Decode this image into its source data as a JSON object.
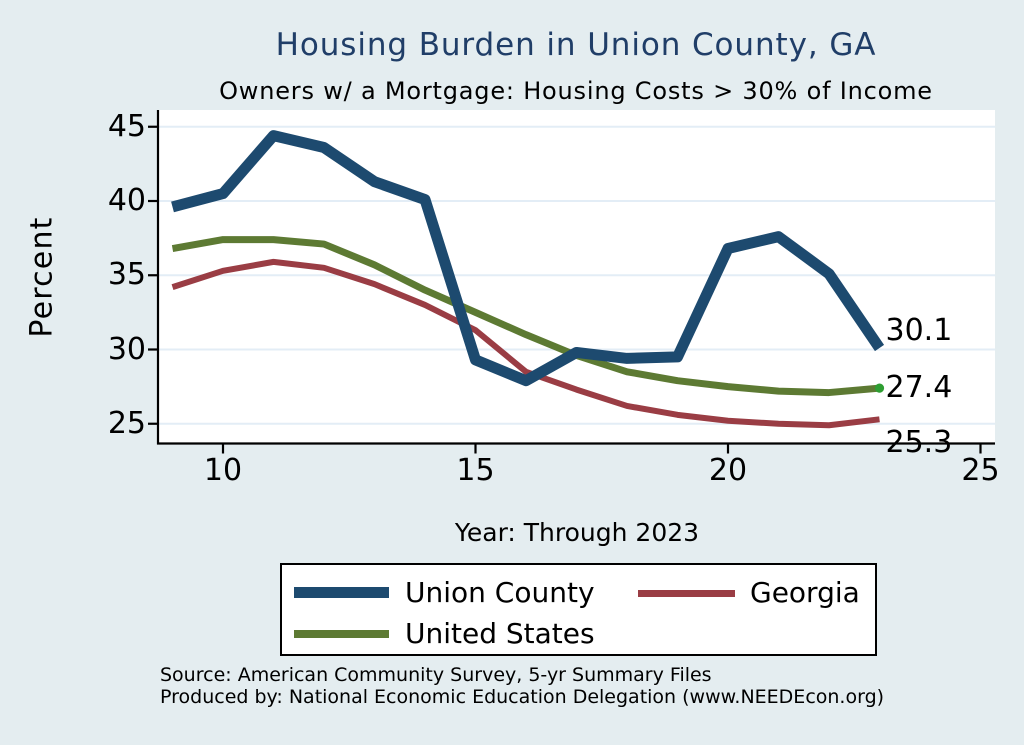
{
  "title": "Housing Burden in Union County, GA",
  "subtitle": "Owners w/ a Mortgage: Housing Costs > 30% of Income",
  "y_axis_label": "Percent",
  "x_axis_label": "Year: Through 2023",
  "source_line1": "Source: American Community Survey, 5-yr Summary Files",
  "source_line2": "Produced by: National Economic Education Delegation (www.NEEDEcon.org)",
  "colors": {
    "background": "#e4edf0",
    "plot_background": "#ffffff",
    "grid": "#e3edf6",
    "axis": "#000000",
    "title_text": "#203e68",
    "end_marker_green": "#2e9e32"
  },
  "chart_data": {
    "type": "line",
    "x": [
      9,
      10,
      11,
      12,
      13,
      14,
      15,
      16,
      17,
      18,
      19,
      20,
      21,
      22,
      23
    ],
    "x_ticks": [
      10,
      15,
      20,
      25
    ],
    "y_ticks": [
      25,
      30,
      35,
      40,
      45
    ],
    "xlim": [
      8.7,
      25.3
    ],
    "ylim": [
      23.7,
      46.1
    ],
    "grid": true,
    "legend_position": "below",
    "series": [
      {
        "name": "Union County",
        "color": "#1d4a6f",
        "line_width": 11,
        "end_label": "30.1",
        "end_marker": false,
        "values": [
          39.6,
          40.5,
          44.4,
          43.6,
          41.3,
          40.1,
          29.3,
          27.9,
          29.8,
          29.4,
          29.5,
          36.8,
          37.6,
          35.1,
          30.1
        ]
      },
      {
        "name": "Georgia",
        "color": "#9a3d44",
        "line_width": 6,
        "end_label": "25.3",
        "end_marker": false,
        "values": [
          34.2,
          35.3,
          35.9,
          35.5,
          34.4,
          33.0,
          31.3,
          28.5,
          27.3,
          26.2,
          25.6,
          25.2,
          25.0,
          24.9,
          25.3
        ]
      },
      {
        "name": "United States",
        "color": "#5d7a33",
        "line_width": 7,
        "end_label": "27.4",
        "end_marker": true,
        "values": [
          36.8,
          37.4,
          37.4,
          37.1,
          35.7,
          34.0,
          32.5,
          31.0,
          29.6,
          28.5,
          27.9,
          27.5,
          27.2,
          27.1,
          27.4
        ]
      }
    ]
  }
}
